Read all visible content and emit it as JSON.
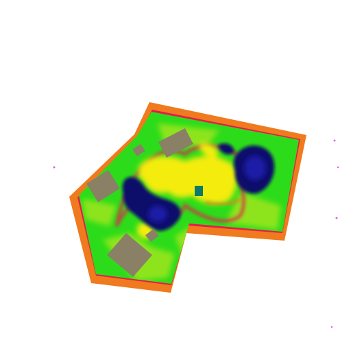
{
  "map": {
    "palette": {
      "boundary": "#f07a1e",
      "edge_band": "#e8194f",
      "base": "#2cdc1a",
      "mid": "#8ee41a",
      "high": "#f4ec10",
      "peak": "#0c0c6a",
      "peak_core": "#1a1aa8",
      "structure": "#8a8066",
      "marker": "#0a7a6a",
      "background": "#ffffff"
    },
    "structures": [
      "building-1",
      "building-2",
      "building-3",
      "building-4",
      "building-5"
    ],
    "marker_icon": "square-marker"
  }
}
